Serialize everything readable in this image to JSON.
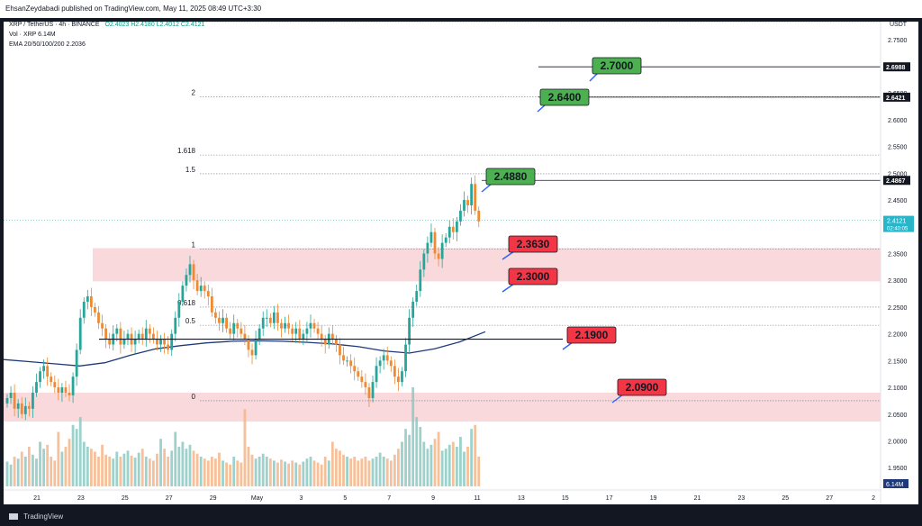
{
  "header": {
    "publisher_line": "EhsanZeydabadi published on TradingView.com, May 11, 2025 08:49 UTC+3:30"
  },
  "legend": {
    "symbol": "XRP / TetherUS · 4h · BINANCE",
    "ohlc": "O2.4023  H2.4180  L2.4012  C2.4121",
    "volume": "Vol · XRP  6.14M",
    "ema": "EMA 20/50/100/200  2.2036"
  },
  "footer": {
    "brand": "TradingView"
  },
  "chart_data": {
    "type": "candlestick",
    "currency": "USDT",
    "y_ticks": [
      "2.7500",
      "2.7000",
      "2.6500",
      "2.6000",
      "2.5500",
      "2.5000",
      "2.4500",
      "2.4000",
      "2.3500",
      "2.3000",
      "2.2500",
      "2.2000",
      "2.1500",
      "2.1000",
      "2.0500",
      "2.0000",
      "1.9500"
    ],
    "ylim": [
      1.915,
      2.79
    ],
    "x_ticks": [
      "21",
      "23",
      "25",
      "27",
      "29",
      "May",
      "3",
      "5",
      "7",
      "9",
      "11",
      "13",
      "15",
      "17",
      "19",
      "21",
      "23",
      "25",
      "27",
      "2"
    ],
    "price_labels": [
      {
        "value": 2.6988,
        "label": "2.6988"
      },
      {
        "value": 2.6421,
        "label": "2.6421"
      },
      {
        "value": 2.4867,
        "label": "2.4867"
      }
    ],
    "current_price": {
      "value": 2.4121,
      "label": "2.4121",
      "timer": "02:40:05"
    },
    "volume_label": "6.14M",
    "fib_levels": [
      {
        "label": "2",
        "value": 2.643
      },
      {
        "label": "1.618",
        "value": 2.534
      },
      {
        "label": "1.5",
        "value": 2.499
      },
      {
        "label": "1",
        "value": 2.358
      },
      {
        "label": "0.618",
        "value": 2.25
      },
      {
        "label": "0.5",
        "value": 2.216
      },
      {
        "label": "0",
        "value": 2.075
      }
    ],
    "zones": [
      {
        "from": 2.298,
        "to": 2.36
      },
      {
        "from": 2.036,
        "to": 2.09
      }
    ],
    "horizontal_line": 2.19,
    "callouts": [
      {
        "label": "2.7000",
        "value": 2.7,
        "color": "#4caf50"
      },
      {
        "label": "2.6400",
        "value": 2.64,
        "color": "#4caf50"
      },
      {
        "label": "2.4880",
        "value": 2.488,
        "color": "#4caf50"
      },
      {
        "label": "2.3630",
        "value": 2.363,
        "color": "#f23645"
      },
      {
        "label": "2.3000",
        "value": 2.3,
        "color": "#f23645"
      },
      {
        "label": "2.1900",
        "value": 2.19,
        "color": "#f23645"
      },
      {
        "label": "2.0900",
        "value": 2.09,
        "color": "#f23645"
      }
    ],
    "closes": [
      2.08,
      2.09,
      2.06,
      2.07,
      2.05,
      2.065,
      2.06,
      2.09,
      2.11,
      2.13,
      2.14,
      2.12,
      2.11,
      2.1,
      2.09,
      2.1,
      2.09,
      2.085,
      2.12,
      2.17,
      2.23,
      2.26,
      2.27,
      2.25,
      2.24,
      2.22,
      2.21,
      2.19,
      2.18,
      2.2,
      2.21,
      2.18,
      2.19,
      2.2,
      2.18,
      2.19,
      2.2,
      2.19,
      2.21,
      2.2,
      2.19,
      2.18,
      2.19,
      2.18,
      2.17,
      2.2,
      2.23,
      2.26,
      2.29,
      2.31,
      2.33,
      2.3,
      2.28,
      2.29,
      2.28,
      2.27,
      2.24,
      2.23,
      2.22,
      2.23,
      2.21,
      2.2,
      2.22,
      2.21,
      2.2,
      2.19,
      2.17,
      2.16,
      2.19,
      2.21,
      2.23,
      2.23,
      2.22,
      2.24,
      2.22,
      2.21,
      2.22,
      2.21,
      2.2,
      2.21,
      2.19,
      2.2,
      2.21,
      2.22,
      2.21,
      2.2,
      2.19,
      2.18,
      2.2,
      2.19,
      2.18,
      2.16,
      2.15,
      2.15,
      2.14,
      2.13,
      2.12,
      2.11,
      2.1,
      2.08,
      2.11,
      2.14,
      2.15,
      2.16,
      2.15,
      2.14,
      2.12,
      2.11,
      2.13,
      2.18,
      2.23,
      2.26,
      2.28,
      2.32,
      2.35,
      2.37,
      2.39,
      2.35,
      2.34,
      2.37,
      2.38,
      2.4,
      2.39,
      2.41,
      2.43,
      2.45,
      2.44,
      2.48,
      2.43,
      2.41
    ],
    "ema_anchor_values": [
      2.152,
      2.148,
      2.144,
      2.14,
      2.146,
      2.16,
      2.172,
      2.178,
      2.183,
      2.186,
      2.187,
      2.186,
      2.184,
      2.181,
      2.176,
      2.168,
      2.164,
      2.172,
      2.185,
      2.204
    ],
    "volumes": [
      0.25,
      0.22,
      0.3,
      0.28,
      0.35,
      0.3,
      0.4,
      0.32,
      0.28,
      0.45,
      0.38,
      0.42,
      0.3,
      0.26,
      0.55,
      0.35,
      0.4,
      0.48,
      0.62,
      0.58,
      0.7,
      0.45,
      0.4,
      0.38,
      0.35,
      0.3,
      0.42,
      0.32,
      0.3,
      0.28,
      0.35,
      0.3,
      0.33,
      0.36,
      0.31,
      0.29,
      0.34,
      0.38,
      0.3,
      0.28,
      0.26,
      0.33,
      0.48,
      0.38,
      0.3,
      0.36,
      0.55,
      0.4,
      0.45,
      0.38,
      0.42,
      0.36,
      0.33,
      0.3,
      0.28,
      0.26,
      0.3,
      0.28,
      0.34,
      0.26,
      0.24,
      0.22,
      0.3,
      0.26,
      0.24,
      0.78,
      0.4,
      0.32,
      0.28,
      0.3,
      0.33,
      0.3,
      0.28,
      0.26,
      0.24,
      0.27,
      0.25,
      0.23,
      0.26,
      0.24,
      0.22,
      0.25,
      0.28,
      0.3,
      0.26,
      0.24,
      0.22,
      0.3,
      0.26,
      0.45,
      0.38,
      0.36,
      0.32,
      0.3,
      0.28,
      0.3,
      0.26,
      0.28,
      0.3,
      0.26,
      0.28,
      0.3,
      0.34,
      0.3,
      0.28,
      0.26,
      0.32,
      0.38,
      0.45,
      0.58,
      0.52,
      1.0,
      0.7,
      0.6,
      0.45,
      0.38,
      0.42,
      0.48,
      0.55,
      0.36,
      0.38,
      0.42,
      0.45,
      0.4,
      0.5,
      0.35,
      0.4,
      0.58,
      0.62,
      0.3
    ]
  }
}
